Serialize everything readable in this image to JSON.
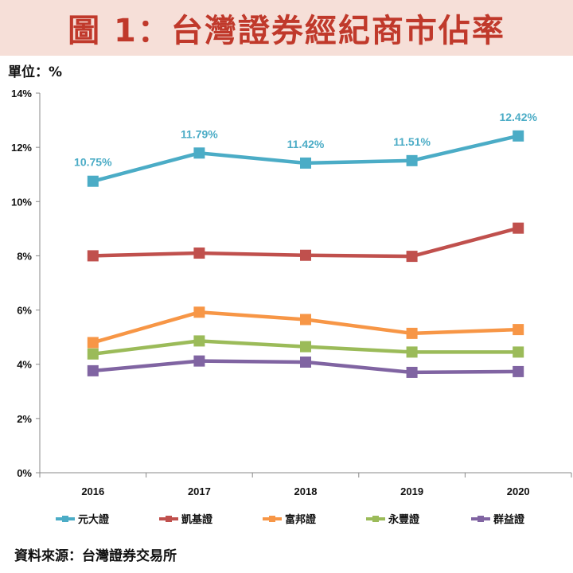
{
  "header": {
    "title": "圖 1：台灣證券經紀商市佔率"
  },
  "unit_label": "單位：%",
  "source_label": "資料來源：台灣證券交易所",
  "chart_data": {
    "type": "line",
    "title": "",
    "xlabel": "",
    "ylabel": "",
    "categories": [
      "2016",
      "2017",
      "2018",
      "2019",
      "2020"
    ],
    "ylim": [
      0,
      14
    ],
    "yticks": [
      "0%",
      "2%",
      "4%",
      "6%",
      "8%",
      "10%",
      "12%",
      "14%"
    ],
    "grid": false,
    "legend_position": "bottom",
    "series": [
      {
        "name": "元大證",
        "color": "#4bacc6",
        "values": [
          10.75,
          11.79,
          11.42,
          11.51,
          12.42
        ],
        "data_labels": [
          "10.75%",
          "11.79%",
          "11.42%",
          "11.51%",
          "12.42%"
        ]
      },
      {
        "name": "凱基證",
        "color": "#c0504d",
        "values": [
          8.0,
          8.1,
          8.02,
          7.98,
          9.02
        ]
      },
      {
        "name": "富邦證",
        "color": "#f79646",
        "values": [
          4.8,
          5.92,
          5.65,
          5.14,
          5.28
        ]
      },
      {
        "name": "永豐證",
        "color": "#9bbb59",
        "values": [
          4.38,
          4.86,
          4.65,
          4.45,
          4.45
        ]
      },
      {
        "name": "群益證",
        "color": "#8064a2",
        "values": [
          3.76,
          4.12,
          4.08,
          3.7,
          3.73
        ]
      }
    ]
  }
}
